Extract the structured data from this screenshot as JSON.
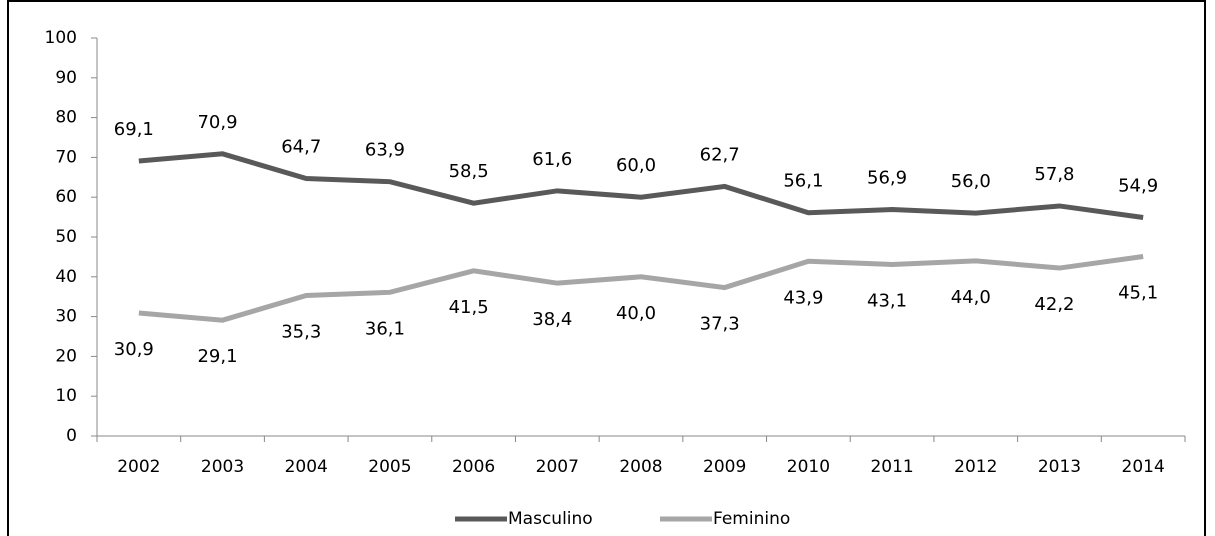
{
  "chart_data": {
    "type": "line",
    "categories": [
      "2002",
      "2003",
      "2004",
      "2005",
      "2006",
      "2007",
      "2008",
      "2009",
      "2010",
      "2011",
      "2012",
      "2013",
      "2014"
    ],
    "series": [
      {
        "name": "Masculino",
        "color": "#595959",
        "values": [
          69.1,
          70.9,
          64.7,
          63.9,
          58.5,
          61.6,
          60.0,
          62.7,
          56.1,
          56.9,
          56.0,
          57.8,
          54.9
        ],
        "value_labels": [
          "69,1",
          "70,9",
          "64,7",
          "63,9",
          "58,5",
          "61,6",
          "60,0",
          "62,7",
          "56,1",
          "56,9",
          "56,0",
          "57,8",
          "54,9"
        ]
      },
      {
        "name": "Feminino",
        "color": "#a6a6a6",
        "values": [
          30.9,
          29.1,
          35.3,
          36.1,
          41.5,
          38.4,
          40.0,
          37.3,
          43.9,
          43.1,
          44.0,
          42.2,
          45.1
        ],
        "value_labels": [
          "30,9",
          "29,1",
          "35,3",
          "36,1",
          "41,5",
          "38,4",
          "40,0",
          "37,3",
          "43,9",
          "43,1",
          "44,0",
          "42,2",
          "45,1"
        ]
      }
    ],
    "ylim": [
      0,
      100
    ],
    "yticks": [
      0,
      10,
      20,
      30,
      40,
      50,
      60,
      70,
      80,
      90,
      100
    ],
    "grid": false,
    "legend": "bottom"
  }
}
